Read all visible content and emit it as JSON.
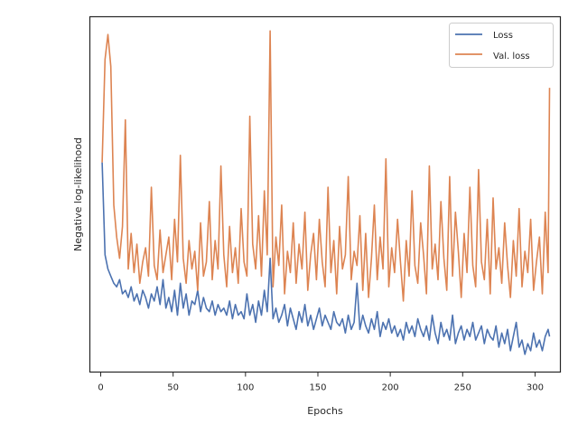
{
  "chart_data": {
    "type": "line",
    "title": "",
    "xlabel": "Epochs",
    "ylabel": "Negative log-likelihood",
    "xlim": [
      -7.5,
      317.5
    ],
    "xticks": [
      0,
      50,
      100,
      150,
      200,
      250,
      300
    ],
    "ylim": [
      0,
      1
    ],
    "yticks_shown": false,
    "grid": false,
    "legend_position": "top-right",
    "series": [
      {
        "name": "Loss",
        "color": "#4c72b0",
        "x": [
          1,
          3,
          5,
          7,
          9,
          11,
          13,
          15,
          17,
          19,
          21,
          23,
          25,
          27,
          29,
          31,
          33,
          35,
          37,
          39,
          41,
          43,
          45,
          47,
          49,
          51,
          53,
          55,
          57,
          59,
          61,
          63,
          65,
          67,
          69,
          71,
          73,
          75,
          77,
          79,
          81,
          83,
          85,
          87,
          89,
          91,
          93,
          95,
          97,
          99,
          101,
          103,
          105,
          107,
          109,
          111,
          113,
          115,
          117,
          119,
          121,
          123,
          125,
          127,
          129,
          131,
          133,
          135,
          137,
          139,
          141,
          143,
          145,
          147,
          149,
          151,
          153,
          155,
          157,
          159,
          161,
          163,
          165,
          167,
          169,
          171,
          173,
          175,
          177,
          179,
          181,
          183,
          185,
          187,
          189,
          191,
          193,
          195,
          197,
          199,
          201,
          203,
          205,
          207,
          209,
          211,
          213,
          215,
          217,
          219,
          221,
          223,
          225,
          227,
          229,
          231,
          233,
          235,
          237,
          239,
          241,
          243,
          245,
          247,
          249,
          251,
          253,
          255,
          257,
          259,
          261,
          263,
          265,
          267,
          269,
          271,
          273,
          275,
          277,
          279,
          281,
          283,
          285,
          287,
          289,
          291,
          293,
          295,
          297,
          299,
          301,
          303,
          305,
          307,
          309,
          310
        ],
        "values": [
          0.59,
          0.33,
          0.29,
          0.27,
          0.25,
          0.24,
          0.26,
          0.22,
          0.23,
          0.21,
          0.24,
          0.2,
          0.22,
          0.19,
          0.23,
          0.21,
          0.18,
          0.22,
          0.2,
          0.24,
          0.19,
          0.26,
          0.18,
          0.21,
          0.17,
          0.23,
          0.16,
          0.25,
          0.18,
          0.22,
          0.16,
          0.2,
          0.19,
          0.23,
          0.17,
          0.21,
          0.18,
          0.17,
          0.2,
          0.16,
          0.19,
          0.17,
          0.18,
          0.16,
          0.2,
          0.15,
          0.19,
          0.16,
          0.17,
          0.15,
          0.22,
          0.16,
          0.19,
          0.14,
          0.2,
          0.16,
          0.23,
          0.17,
          0.32,
          0.15,
          0.18,
          0.14,
          0.16,
          0.19,
          0.13,
          0.18,
          0.15,
          0.12,
          0.17,
          0.14,
          0.19,
          0.13,
          0.16,
          0.12,
          0.15,
          0.18,
          0.13,
          0.16,
          0.14,
          0.12,
          0.17,
          0.14,
          0.13,
          0.15,
          0.11,
          0.16,
          0.12,
          0.14,
          0.25,
          0.12,
          0.16,
          0.13,
          0.11,
          0.15,
          0.12,
          0.17,
          0.1,
          0.14,
          0.12,
          0.15,
          0.11,
          0.13,
          0.1,
          0.12,
          0.09,
          0.14,
          0.11,
          0.13,
          0.1,
          0.15,
          0.12,
          0.1,
          0.13,
          0.09,
          0.16,
          0.11,
          0.08,
          0.14,
          0.1,
          0.12,
          0.09,
          0.16,
          0.08,
          0.11,
          0.13,
          0.09,
          0.12,
          0.1,
          0.14,
          0.09,
          0.11,
          0.13,
          0.08,
          0.12,
          0.1,
          0.09,
          0.13,
          0.07,
          0.11,
          0.08,
          0.12,
          0.06,
          0.1,
          0.14,
          0.07,
          0.09,
          0.05,
          0.08,
          0.06,
          0.11,
          0.07,
          0.09,
          0.06,
          0.1,
          0.12,
          0.1
        ]
      },
      {
        "name": "Val. loss",
        "color": "#dd8452",
        "x": [
          1,
          3,
          5,
          7,
          9,
          11,
          13,
          15,
          17,
          19,
          21,
          23,
          25,
          27,
          29,
          31,
          33,
          35,
          37,
          39,
          41,
          43,
          45,
          47,
          49,
          51,
          53,
          55,
          57,
          59,
          61,
          63,
          65,
          67,
          69,
          71,
          73,
          75,
          77,
          79,
          81,
          83,
          85,
          87,
          89,
          91,
          93,
          95,
          97,
          99,
          101,
          103,
          105,
          107,
          109,
          111,
          113,
          115,
          117,
          119,
          121,
          123,
          125,
          127,
          129,
          131,
          133,
          135,
          137,
          139,
          141,
          143,
          145,
          147,
          149,
          151,
          153,
          155,
          157,
          159,
          161,
          163,
          165,
          167,
          169,
          171,
          173,
          175,
          177,
          179,
          181,
          183,
          185,
          187,
          189,
          191,
          193,
          195,
          197,
          199,
          201,
          203,
          205,
          207,
          209,
          211,
          213,
          215,
          217,
          219,
          221,
          223,
          225,
          227,
          229,
          231,
          233,
          235,
          237,
          239,
          241,
          243,
          245,
          247,
          249,
          251,
          253,
          255,
          257,
          259,
          261,
          263,
          265,
          267,
          269,
          271,
          273,
          275,
          277,
          279,
          281,
          283,
          285,
          287,
          289,
          291,
          293,
          295,
          297,
          299,
          301,
          303,
          305,
          307,
          309,
          310
        ],
        "values": [
          0.59,
          0.88,
          0.95,
          0.86,
          0.47,
          0.38,
          0.32,
          0.41,
          0.71,
          0.29,
          0.39,
          0.28,
          0.36,
          0.25,
          0.31,
          0.35,
          0.27,
          0.52,
          0.3,
          0.26,
          0.4,
          0.28,
          0.33,
          0.38,
          0.26,
          0.43,
          0.31,
          0.61,
          0.32,
          0.25,
          0.37,
          0.29,
          0.34,
          0.23,
          0.42,
          0.27,
          0.31,
          0.48,
          0.26,
          0.37,
          0.29,
          0.58,
          0.33,
          0.24,
          0.41,
          0.28,
          0.35,
          0.25,
          0.46,
          0.31,
          0.27,
          0.72,
          0.36,
          0.29,
          0.44,
          0.27,
          0.51,
          0.33,
          0.96,
          0.24,
          0.38,
          0.3,
          0.47,
          0.22,
          0.34,
          0.28,
          0.42,
          0.25,
          0.36,
          0.29,
          0.45,
          0.23,
          0.33,
          0.39,
          0.26,
          0.43,
          0.31,
          0.24,
          0.52,
          0.28,
          0.37,
          0.22,
          0.41,
          0.29,
          0.33,
          0.55,
          0.26,
          0.34,
          0.3,
          0.44,
          0.23,
          0.39,
          0.21,
          0.32,
          0.47,
          0.26,
          0.38,
          0.29,
          0.6,
          0.24,
          0.35,
          0.28,
          0.43,
          0.31,
          0.2,
          0.37,
          0.27,
          0.51,
          0.3,
          0.25,
          0.42,
          0.33,
          0.22,
          0.58,
          0.29,
          0.36,
          0.26,
          0.48,
          0.32,
          0.23,
          0.55,
          0.27,
          0.45,
          0.34,
          0.21,
          0.39,
          0.28,
          0.52,
          0.3,
          0.24,
          0.57,
          0.31,
          0.26,
          0.43,
          0.22,
          0.49,
          0.29,
          0.35,
          0.25,
          0.42,
          0.3,
          0.21,
          0.37,
          0.27,
          0.46,
          0.24,
          0.34,
          0.28,
          0.43,
          0.23,
          0.31,
          0.38,
          0.22,
          0.45,
          0.28,
          0.8
        ]
      }
    ]
  }
}
